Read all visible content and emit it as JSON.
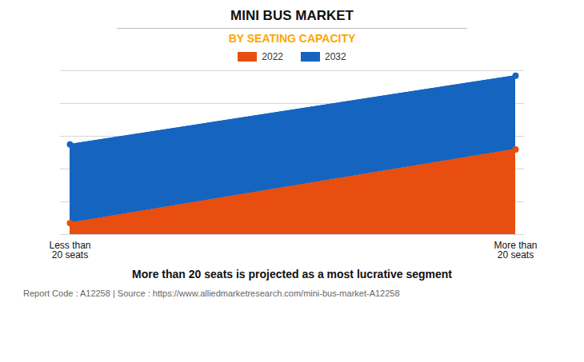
{
  "chart_data": {
    "type": "area",
    "title": "MINI BUS MARKET",
    "subtitle": "BY SEATING CAPACITY",
    "categories": [
      "Less than\n20 seats",
      "More than\n20 seats"
    ],
    "series": [
      {
        "name": "2022",
        "color": "#E84E0F",
        "values": [
          0.07,
          0.52
        ],
        "marker": "circle"
      },
      {
        "name": "2032",
        "color": "#1565C0",
        "values": [
          0.55,
          0.97
        ],
        "marker": "circle"
      }
    ],
    "ylim": [
      0,
      1.0
    ],
    "yticks": [
      0,
      0.2,
      0.4,
      0.6,
      0.8,
      1.0
    ],
    "grid": true,
    "legend": "top",
    "tick_labels": "x",
    "caption": "More than 20 seats is projected as a most lucrative segment",
    "footer": "Report Code : A12258  |  Source : https://www.alliedmarketresearch.com/mini-bus-market-A12258"
  }
}
